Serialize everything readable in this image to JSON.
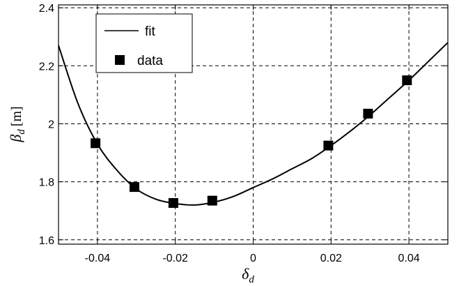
{
  "chart_data": {
    "type": "scatter",
    "xlabel": {
      "symbol": "δ",
      "sub": "d"
    },
    "ylabel": {
      "symbol": "β",
      "sub": "d",
      "unit": "[m]"
    },
    "xlim": [
      -0.05,
      0.05
    ],
    "ylim": [
      1.585,
      2.41
    ],
    "x_ticks": [
      -0.04,
      -0.02,
      0,
      0.02,
      0.04
    ],
    "x_tick_labels": [
      "-0.04",
      "-0.02",
      "0",
      "0.02",
      "0.04"
    ],
    "y_ticks": [
      1.6,
      1.8,
      2.0,
      2.2,
      2.4
    ],
    "y_tick_labels": [
      "1.6",
      "1.8",
      "2",
      "2.2",
      "2.4"
    ],
    "grid": true,
    "grid_style": "dashed",
    "legend_position": "top-left",
    "series": [
      {
        "name": "fit",
        "type": "line",
        "color": "#000000",
        "x": [
          -0.05,
          -0.045,
          -0.04,
          -0.035,
          -0.03,
          -0.025,
          -0.02,
          -0.015,
          -0.01,
          -0.005,
          0.0,
          0.005,
          0.01,
          0.015,
          0.02,
          0.025,
          0.03,
          0.035,
          0.04,
          0.045,
          0.05
        ],
        "y": [
          2.27,
          2.07,
          1.93,
          1.84,
          1.775,
          1.74,
          1.725,
          1.72,
          1.73,
          1.75,
          1.78,
          1.81,
          1.845,
          1.88,
          1.925,
          1.975,
          2.03,
          2.09,
          2.15,
          2.215,
          2.28
        ]
      },
      {
        "name": "data",
        "type": "scatter",
        "marker": "square",
        "color": "#000000",
        "x": [
          -0.0405,
          -0.0305,
          -0.0205,
          -0.0105,
          0.0193,
          0.0295,
          0.0395
        ],
        "y": [
          1.933,
          1.782,
          1.727,
          1.735,
          1.925,
          2.035,
          2.15
        ]
      }
    ]
  }
}
